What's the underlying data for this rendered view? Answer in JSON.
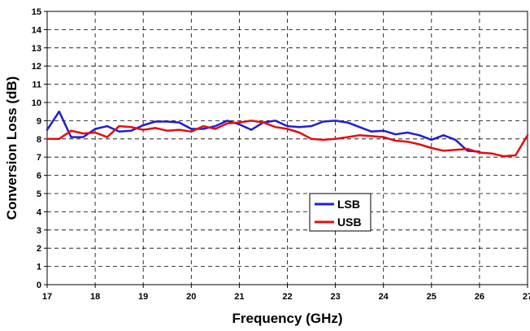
{
  "chart_data": {
    "type": "line",
    "title": "",
    "xlabel": "Frequency (GHz)",
    "ylabel": "Conversion Loss (dB)",
    "xlim": [
      17,
      27
    ],
    "ylim": [
      0,
      15
    ],
    "x_ticks": [
      "17",
      "18",
      "19",
      "20",
      "21",
      "22",
      "23",
      "24",
      "25",
      "26",
      "27"
    ],
    "y_ticks": [
      "0",
      "1",
      "2",
      "3",
      "4",
      "5",
      "6",
      "7",
      "8",
      "9",
      "10",
      "11",
      "12",
      "13",
      "14",
      "15"
    ],
    "grid": true,
    "legend_position": "lower-center",
    "series": [
      {
        "name": "LSB",
        "color": "#1f1fd0",
        "points": [
          [
            17.0,
            8.5
          ],
          [
            17.25,
            9.5
          ],
          [
            17.5,
            8.1
          ],
          [
            17.75,
            8.1
          ],
          [
            18.0,
            8.55
          ],
          [
            18.25,
            8.7
          ],
          [
            18.5,
            8.4
          ],
          [
            18.75,
            8.45
          ],
          [
            19.0,
            8.75
          ],
          [
            19.25,
            8.95
          ],
          [
            19.5,
            8.95
          ],
          [
            19.75,
            8.9
          ],
          [
            20.0,
            8.55
          ],
          [
            20.25,
            8.55
          ],
          [
            20.5,
            8.7
          ],
          [
            20.75,
            9.0
          ],
          [
            21.0,
            8.8
          ],
          [
            21.25,
            8.5
          ],
          [
            21.5,
            8.9
          ],
          [
            21.75,
            9.0
          ],
          [
            22.0,
            8.7
          ],
          [
            22.25,
            8.65
          ],
          [
            22.5,
            8.7
          ],
          [
            22.75,
            8.95
          ],
          [
            23.0,
            9.0
          ],
          [
            23.25,
            8.9
          ],
          [
            23.5,
            8.65
          ],
          [
            23.75,
            8.4
          ],
          [
            24.0,
            8.45
          ],
          [
            24.25,
            8.25
          ],
          [
            24.5,
            8.35
          ],
          [
            24.75,
            8.2
          ],
          [
            25.0,
            7.95
          ],
          [
            25.25,
            8.2
          ],
          [
            25.5,
            7.95
          ],
          [
            25.75,
            7.35
          ],
          [
            26.0,
            7.3
          ]
        ]
      },
      {
        "name": "USB",
        "color": "#e01010",
        "points": [
          [
            17.0,
            8.0
          ],
          [
            17.25,
            8.0
          ],
          [
            17.5,
            8.45
          ],
          [
            17.75,
            8.3
          ],
          [
            18.0,
            8.35
          ],
          [
            18.25,
            8.1
          ],
          [
            18.5,
            8.7
          ],
          [
            18.75,
            8.65
          ],
          [
            19.0,
            8.5
          ],
          [
            19.25,
            8.6
          ],
          [
            19.5,
            8.45
          ],
          [
            19.75,
            8.5
          ],
          [
            20.0,
            8.4
          ],
          [
            20.25,
            8.7
          ],
          [
            20.5,
            8.55
          ],
          [
            20.75,
            8.85
          ],
          [
            21.0,
            8.9
          ],
          [
            21.25,
            9.0
          ],
          [
            21.5,
            8.9
          ],
          [
            21.75,
            8.65
          ],
          [
            22.0,
            8.55
          ],
          [
            22.25,
            8.35
          ],
          [
            22.5,
            8.0
          ],
          [
            22.75,
            7.95
          ],
          [
            23.0,
            8.0
          ],
          [
            23.25,
            8.1
          ],
          [
            23.5,
            8.2
          ],
          [
            23.75,
            8.15
          ],
          [
            24.0,
            8.1
          ],
          [
            24.25,
            7.9
          ],
          [
            24.5,
            7.85
          ],
          [
            24.75,
            7.7
          ],
          [
            25.0,
            7.5
          ],
          [
            25.25,
            7.35
          ],
          [
            25.5,
            7.4
          ],
          [
            25.75,
            7.45
          ],
          [
            26.0,
            7.25
          ],
          [
            26.25,
            7.2
          ],
          [
            26.5,
            7.05
          ],
          [
            26.75,
            7.1
          ],
          [
            27.0,
            8.2
          ]
        ]
      }
    ]
  }
}
